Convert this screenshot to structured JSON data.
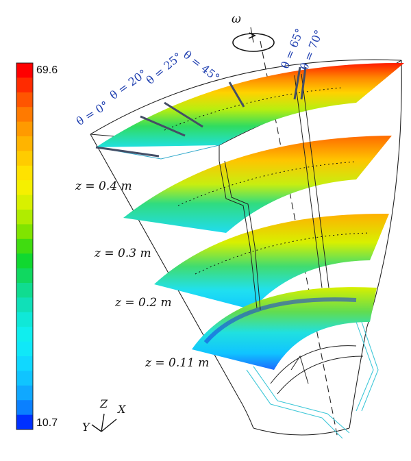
{
  "colorbar": {
    "max_label": "69.6",
    "min_label": "10.7",
    "colors": [
      "#ff0000",
      "#ff2b00",
      "#ff5500",
      "#ff7a00",
      "#ff9a00",
      "#ffb400",
      "#ffcc00",
      "#ffe200",
      "#f5f000",
      "#d8f000",
      "#b0ec00",
      "#80e400",
      "#40dc10",
      "#10d830",
      "#10d860",
      "#10dc90",
      "#10e0b8",
      "#10e8d8",
      "#10eeee",
      "#10e8f8",
      "#10d8ff",
      "#10c4ff",
      "#10a8ff",
      "#0a80ff",
      "#0030ff"
    ]
  },
  "rotation_label": "ω",
  "angle_labels": [
    "θ = 0°",
    "θ = 20°",
    "θ = 25°",
    "θ = 45°",
    "θ = 65°",
    "θ = 70°"
  ],
  "plane_labels": [
    "z = 0.4 m",
    "z = 0.3 m",
    "z = 0.2 m",
    "z = 0.11 m"
  ],
  "axes": {
    "z": "Z",
    "x": "X",
    "y": "Y"
  }
}
